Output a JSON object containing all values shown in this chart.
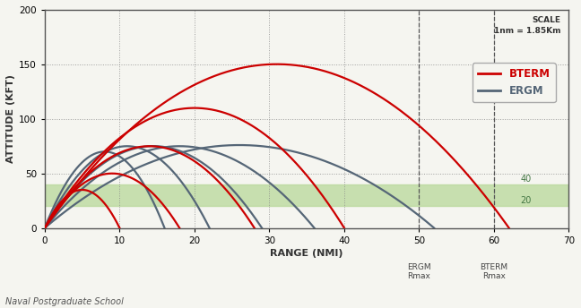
{
  "xlabel": "RANGE (NMI)",
  "ylabel": "ATTITUDE (KFT)",
  "xlim": [
    0,
    70
  ],
  "ylim": [
    0,
    200
  ],
  "xticks": [
    0,
    10,
    20,
    30,
    40,
    50,
    60,
    70
  ],
  "yticks": [
    0,
    50,
    100,
    150,
    200
  ],
  "background_color": "#f5f5f0",
  "plot_bg_color": "#f5f5f0",
  "grid_color": "#888888",
  "green_band_ymin": 20,
  "green_band_ymax": 40,
  "green_band_color": "#b8d89a",
  "green_band_alpha": 0.75,
  "scale_text": "SCALE\n1nm = 1.85Km",
  "footer_text": "Naval Postgraduate School",
  "ergm_rmax_x": 50,
  "bterm_rmax_x": 60,
  "bterm_color": "#cc0000",
  "ergm_color": "#556677",
  "bterm_trajectories": [
    {
      "peak_x": 5,
      "peak_y": 35,
      "x_end": 10
    },
    {
      "peak_x": 9,
      "peak_y": 50,
      "x_end": 18
    },
    {
      "peak_x": 14,
      "peak_y": 75,
      "x_end": 28
    },
    {
      "peak_x": 20,
      "peak_y": 110,
      "x_end": 40
    },
    {
      "peak_x": 30,
      "peak_y": 150,
      "x_end": 62
    }
  ],
  "ergm_trajectories": [
    {
      "peak_x": 8,
      "peak_y": 70,
      "x_end": 16
    },
    {
      "peak_x": 11,
      "peak_y": 75,
      "x_end": 22
    },
    {
      "peak_x": 14,
      "peak_y": 75,
      "x_end": 29
    },
    {
      "peak_x": 18,
      "peak_y": 75,
      "x_end": 36
    },
    {
      "peak_x": 23,
      "peak_y": 75,
      "x_end": 52
    }
  ],
  "label_40_color": "#447744",
  "label_20_color": "#447744",
  "rmax_label_color": "#444444"
}
